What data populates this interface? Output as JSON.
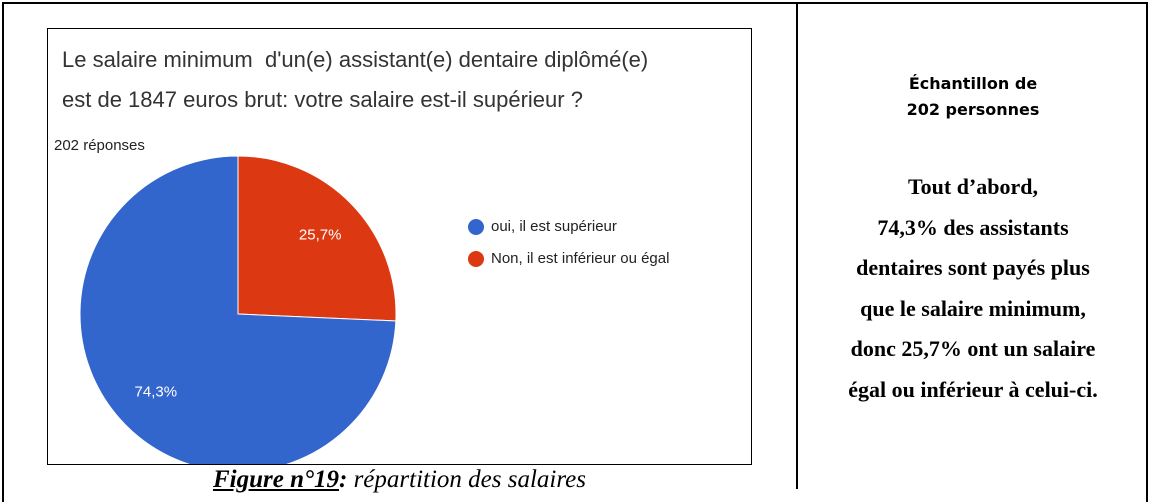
{
  "chart_data": {
    "type": "pie",
    "title": [
      "Le salaire minimum  d'un(e) assistant(e) dentaire diplômé(e)",
      "est de 1847 euros brut: votre salaire est-il supérieur ?"
    ],
    "subtitle": "202 réponses",
    "categories": [
      "oui, il est supérieur",
      "Non, il est inférieur ou égal"
    ],
    "values": [
      74.3,
      25.7
    ],
    "value_labels": [
      "74,3%",
      "25,7%"
    ],
    "colors": [
      "#3366cc",
      "#dc3912"
    ],
    "legend": "right"
  },
  "caption": {
    "label": "Figure n°19",
    "separator": ":",
    "text": " répartition des salaires"
  },
  "sample": [
    "Échantillon de",
    "202 personnes"
  ],
  "summary": [
    "Tout d’abord,",
    "74,3% des assistants",
    "dentaires sont payés plus",
    "que le salaire minimum,",
    "donc 25,7% ont un salaire",
    "égal ou inférieur à celui-ci."
  ]
}
